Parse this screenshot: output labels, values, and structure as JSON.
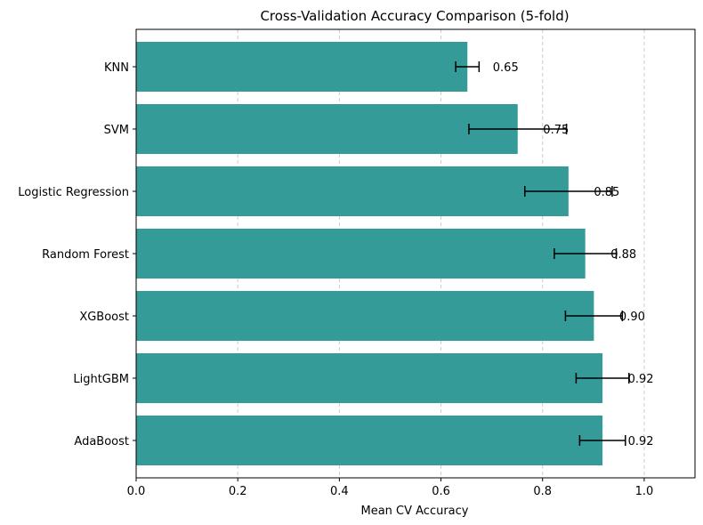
{
  "chart_data": {
    "type": "bar",
    "orientation": "horizontal",
    "title": "Cross-Validation Accuracy Comparison (5-fold)",
    "xlabel": "Mean CV Accuracy",
    "ylabel": "",
    "xlim": [
      0,
      1.1
    ],
    "x_ticks": [
      "0.0",
      "0.2",
      "0.4",
      "0.6",
      "0.8",
      "1.0"
    ],
    "x_tick_values": [
      0,
      0.2,
      0.4,
      0.6,
      0.8,
      1.0
    ],
    "grid": "vertical dashed",
    "bar_color": "#349b99",
    "errorbar_color": "#000000",
    "categories": [
      "KNN",
      "SVM",
      "Logistic Regression",
      "Random Forest",
      "XGBoost",
      "LightGBM",
      "AdaBoost"
    ],
    "values": [
      0.652,
      0.751,
      0.851,
      0.884,
      0.901,
      0.918,
      0.918
    ],
    "errors": [
      0.023,
      0.096,
      0.086,
      0.061,
      0.056,
      0.052,
      0.045
    ],
    "value_labels": [
      "0.65",
      "0.75",
      "0.85",
      "0.88",
      "0.90",
      "0.92",
      "0.92"
    ]
  }
}
